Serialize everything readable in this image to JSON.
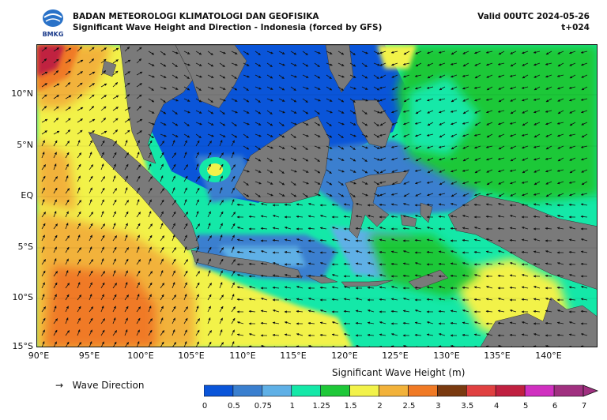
{
  "header": {
    "agency": "BADAN METEOROLOGI KLIMATOLOGI DAN GEOFISIKA",
    "product": "Significant Wave Height and Direction - Indonesia (forced by GFS)",
    "valid": "Valid 00UTC 2024-05-26",
    "lead": "t+024",
    "logo_text": "BMKG"
  },
  "map": {
    "lat_labels": [
      "10°N",
      "5°N",
      "EQ",
      "5°S",
      "10°S",
      "15°S"
    ],
    "lon_labels": [
      "90°E",
      "95°E",
      "100°E",
      "105°E",
      "110°E",
      "115°E",
      "120°E",
      "125°E",
      "130°E",
      "135°E",
      "140°E"
    ],
    "lon_range": [
      90,
      145
    ],
    "lat_range": [
      -15,
      14.5
    ]
  },
  "legend": {
    "arrow_label": "Wave Direction",
    "colorbar_title": "Significant Wave Height (m)",
    "ticks": [
      "0",
      "0.5",
      "0.75",
      "1",
      "1.25",
      "1.5",
      "2",
      "2.5",
      "3",
      "3.5",
      "4",
      "5",
      "6",
      "7"
    ],
    "colors": [
      "#0a55d9",
      "#3a7fcf",
      "#5fb0e6",
      "#14e8a8",
      "#1ec838",
      "#f2f24a",
      "#f2b23a",
      "#f07a25",
      "#7a3a10",
      "#e04040",
      "#c02040",
      "#d030c0",
      "#a03080"
    ]
  },
  "colors": {
    "land": "#7a7a7a",
    "deep_blue": "#0a55d9",
    "mid_blue": "#3a7fcf",
    "light_blue": "#5fb0e6",
    "cyan": "#14e8a8",
    "green": "#1ec838",
    "yellow": "#f2f24a",
    "orange": "#f2b23a",
    "dark_orange": "#f07a25",
    "red": "#c02040"
  }
}
